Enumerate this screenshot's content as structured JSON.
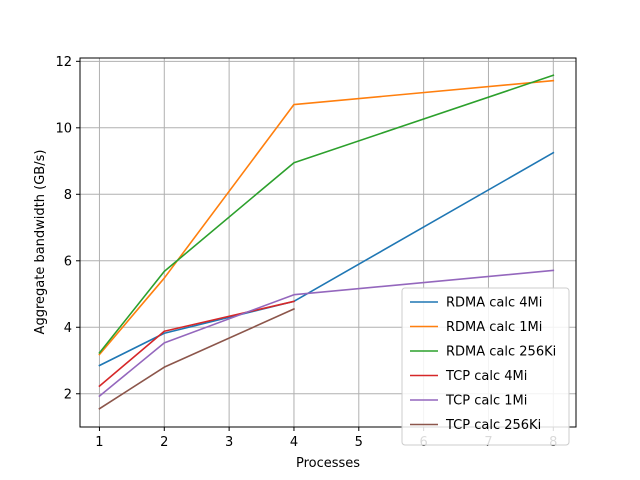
{
  "chart_data": {
    "type": "line",
    "title": "",
    "xlabel": "Processes",
    "ylabel": "Aggregate bandwidth (GB/s)",
    "xlim": [
      0.7,
      8.35
    ],
    "ylim": [
      1.0,
      12.1
    ],
    "xticks": [
      1,
      2,
      3,
      4,
      5,
      6,
      7,
      8
    ],
    "yticks": [
      2,
      4,
      6,
      8,
      10,
      12
    ],
    "grid": true,
    "legend_position": "lower-right",
    "series": [
      {
        "name": "RDMA calc 4Mi",
        "color": "#1f77b4",
        "x": [
          1,
          2,
          4,
          8
        ],
        "y": [
          2.85,
          3.82,
          4.78,
          9.25
        ]
      },
      {
        "name": "RDMA calc 1Mi",
        "color": "#ff7f0e",
        "x": [
          1,
          2,
          4,
          8
        ],
        "y": [
          3.18,
          5.48,
          10.7,
          11.42
        ]
      },
      {
        "name": "RDMA calc 256Ki",
        "color": "#2ca02c",
        "x": [
          1,
          2,
          4,
          8
        ],
        "y": [
          3.23,
          5.68,
          8.95,
          11.58
        ]
      },
      {
        "name": "TCP calc 4Mi",
        "color": "#d62728",
        "x": [
          1,
          2,
          4
        ],
        "y": [
          2.23,
          3.88,
          4.78
        ]
      },
      {
        "name": "TCP calc 1Mi",
        "color": "#9467bd",
        "x": [
          1,
          2,
          4,
          8
        ],
        "y": [
          1.93,
          3.53,
          4.98,
          5.71
        ]
      },
      {
        "name": "TCP calc 256Ki",
        "color": "#8c564b",
        "x": [
          1,
          2,
          4
        ],
        "y": [
          1.55,
          2.8,
          4.55
        ]
      }
    ]
  }
}
